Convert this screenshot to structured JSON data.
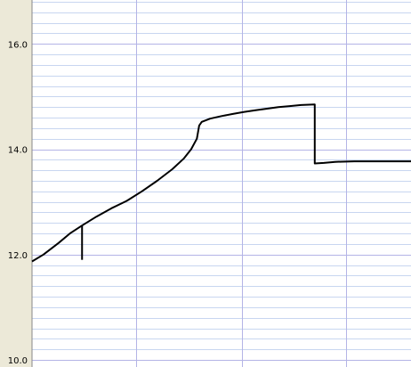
{
  "chart_data": {
    "type": "line",
    "title": "",
    "xlabel": "",
    "ylabel": "",
    "ylim": [
      10.0,
      16.8
    ],
    "y_ticks": [
      "10.0",
      "12.0",
      "14.0",
      "16.0"
    ],
    "y_tick_values": [
      10.0,
      12.0,
      14.0,
      16.0
    ],
    "y_minor_step": 0.2,
    "x_range": [
      0,
      100
    ],
    "x_gridlines": [
      27.5,
      55.3,
      82.8
    ],
    "grid": true,
    "colors": {
      "background": "#ffffff",
      "frame": "#ece9d8",
      "minor_grid": "#c8d6f0",
      "major_grid": "#b4b4e6",
      "line": "#000000"
    },
    "series": [
      {
        "values": [
          [
            0,
            11.87
          ],
          [
            3,
            12.0
          ],
          [
            7,
            12.22
          ],
          [
            10,
            12.4
          ],
          [
            13.2,
            12.55
          ],
          [
            17,
            12.72
          ],
          [
            21,
            12.88
          ],
          [
            25,
            13.02
          ],
          [
            29,
            13.2
          ],
          [
            33,
            13.4
          ],
          [
            37,
            13.62
          ],
          [
            40,
            13.82
          ],
          [
            42,
            14.0
          ],
          [
            43.5,
            14.2
          ],
          [
            44.1,
            14.45
          ],
          [
            44.8,
            14.52
          ],
          [
            47,
            14.58
          ],
          [
            50,
            14.63
          ],
          [
            53,
            14.67
          ],
          [
            56,
            14.71
          ],
          [
            59,
            14.74
          ],
          [
            62,
            14.77
          ],
          [
            65,
            14.8
          ],
          [
            68,
            14.82
          ],
          [
            71,
            14.84
          ],
          [
            74.6,
            14.85
          ],
          [
            74.6,
            13.73
          ],
          [
            77,
            13.74
          ],
          [
            80,
            13.76
          ],
          [
            85,
            13.77
          ],
          [
            90,
            13.77
          ],
          [
            100,
            13.77
          ]
        ]
      }
    ],
    "annotations": [
      {
        "type": "vertical-tick",
        "x": 13.2,
        "y_from": 12.55,
        "y_to": 11.9
      }
    ]
  }
}
